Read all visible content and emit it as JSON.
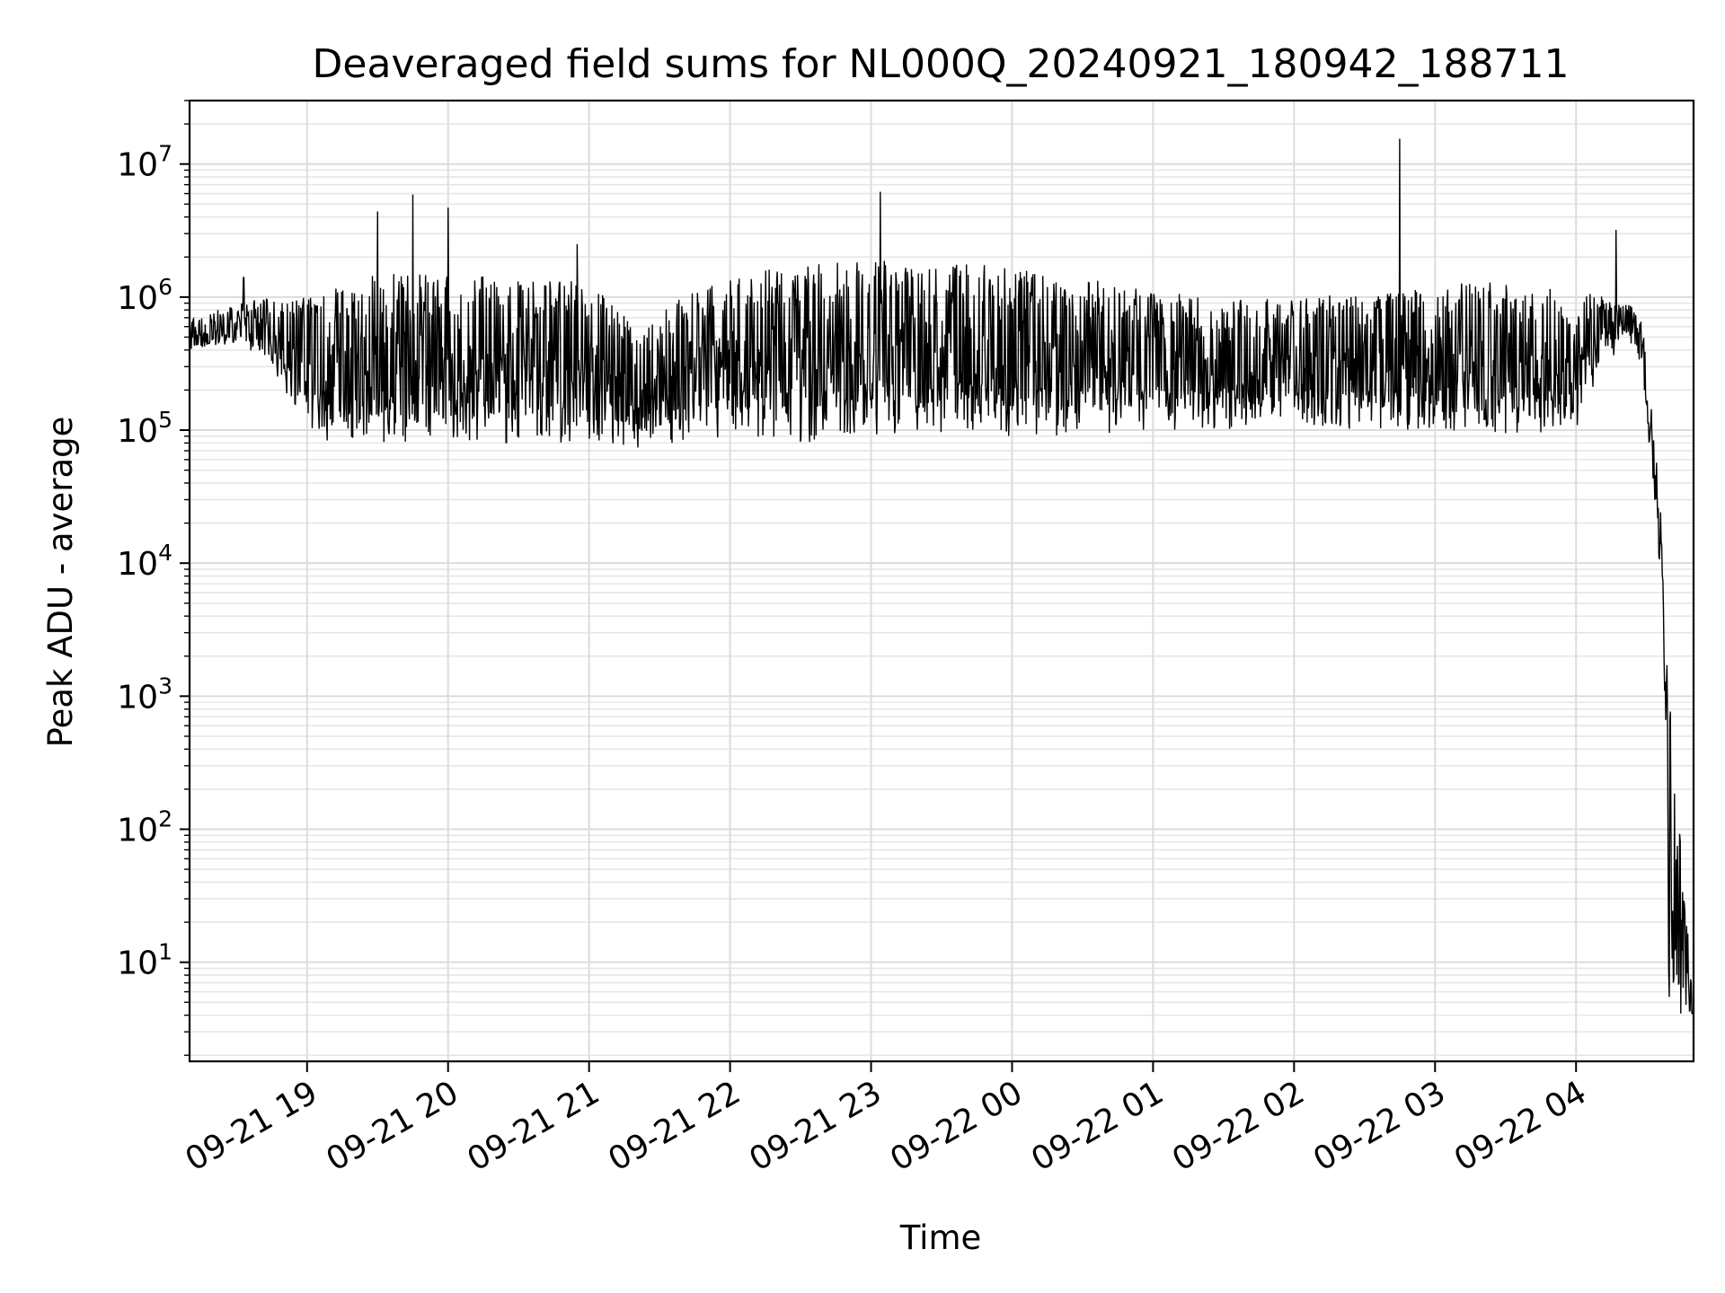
{
  "chart_data": {
    "type": "line",
    "title": "Deaveraged field sums for NL000Q_20240921_180942_188711",
    "xlabel": "Time",
    "ylabel": "Peak ADU - average",
    "yscale": "log",
    "ylim": [
      1.8,
      30000000
    ],
    "xlim": [
      "09-21 18:10",
      "09-22 04:50"
    ],
    "grid": true,
    "x_tick_labels": [
      "09-21 19",
      "09-21 20",
      "09-21 21",
      "09-21 22",
      "09-21 23",
      "09-22 00",
      "09-22 01",
      "09-22 02",
      "09-22 03",
      "09-22 04"
    ],
    "y_tick_labels": [
      {
        "base": "10",
        "exp": "1",
        "value": 10
      },
      {
        "base": "10",
        "exp": "2",
        "value": 100
      },
      {
        "base": "10",
        "exp": "3",
        "value": 1000
      },
      {
        "base": "10",
        "exp": "4",
        "value": 10000
      },
      {
        "base": "10",
        "exp": "5",
        "value": 100000
      },
      {
        "base": "10",
        "exp": "6",
        "value": 1000000
      },
      {
        "base": "10",
        "exp": "7",
        "value": 10000000
      }
    ],
    "series": [
      {
        "color": "#000000",
        "envelope": [
          {
            "x": "09-21 18:10",
            "low": 400000,
            "high": 700000
          },
          {
            "x": "09-21 18:30",
            "low": 450000,
            "high": 900000
          },
          {
            "x": "09-21 18:45",
            "low": 300000,
            "high": 1000000
          },
          {
            "x": "09-21 19:00",
            "low": 100000,
            "high": 1000000
          },
          {
            "x": "09-21 19:15",
            "low": 70000,
            "high": 1200000
          },
          {
            "x": "09-21 19:30",
            "low": 70000,
            "high": 1500000
          },
          {
            "x": "09-21 20:00",
            "low": 80000,
            "high": 1500000
          },
          {
            "x": "09-21 20:30",
            "low": 80000,
            "high": 1400000
          },
          {
            "x": "09-21 21:00",
            "low": 80000,
            "high": 1300000
          },
          {
            "x": "09-21 21:20",
            "low": 70000,
            "high": 600000
          },
          {
            "x": "09-21 21:40",
            "low": 80000,
            "high": 1000000
          },
          {
            "x": "09-21 22:00",
            "low": 90000,
            "high": 1400000
          },
          {
            "x": "09-21 22:30",
            "low": 80000,
            "high": 1800000
          },
          {
            "x": "09-21 23:00",
            "low": 90000,
            "high": 1900000
          },
          {
            "x": "09-21 23:30",
            "low": 90000,
            "high": 1800000
          },
          {
            "x": "09-22 00:00",
            "low": 90000,
            "high": 1700000
          },
          {
            "x": "09-22 00:30",
            "low": 90000,
            "high": 1400000
          },
          {
            "x": "09-22 01:00",
            "low": 100000,
            "high": 1100000
          },
          {
            "x": "09-22 01:30",
            "low": 100000,
            "high": 1000000
          },
          {
            "x": "09-22 02:00",
            "low": 110000,
            "high": 1000000
          },
          {
            "x": "09-22 02:30",
            "low": 100000,
            "high": 1100000
          },
          {
            "x": "09-22 03:00",
            "low": 100000,
            "high": 1300000
          },
          {
            "x": "09-22 03:30",
            "low": 90000,
            "high": 1300000
          },
          {
            "x": "09-22 04:00",
            "low": 100000,
            "high": 1100000
          },
          {
            "x": "09-22 04:20",
            "low": 500000,
            "high": 1000000
          },
          {
            "x": "09-22 04:28",
            "low": 300000,
            "high": 700000
          },
          {
            "x": "09-22 04:33",
            "low": 30000,
            "high": 100000
          },
          {
            "x": "09-22 04:37",
            "low": 5000,
            "high": 20000
          },
          {
            "x": "09-22 04:39",
            "low": 4,
            "high": 1500
          },
          {
            "x": "09-22 04:50",
            "low": 4,
            "high": 4.5
          }
        ],
        "spikes": [
          {
            "x": "09-21 18:33",
            "y": 1400000
          },
          {
            "x": "09-21 19:30",
            "y": 4400000
          },
          {
            "x": "09-21 19:45",
            "y": 5900000
          },
          {
            "x": "09-21 20:00",
            "y": 4700000
          },
          {
            "x": "09-21 20:55",
            "y": 2500000
          },
          {
            "x": "09-21 23:04",
            "y": 6200000
          },
          {
            "x": "09-22 02:45",
            "y": 15500000
          },
          {
            "x": "09-22 04:17",
            "y": 3200000
          }
        ]
      }
    ]
  }
}
